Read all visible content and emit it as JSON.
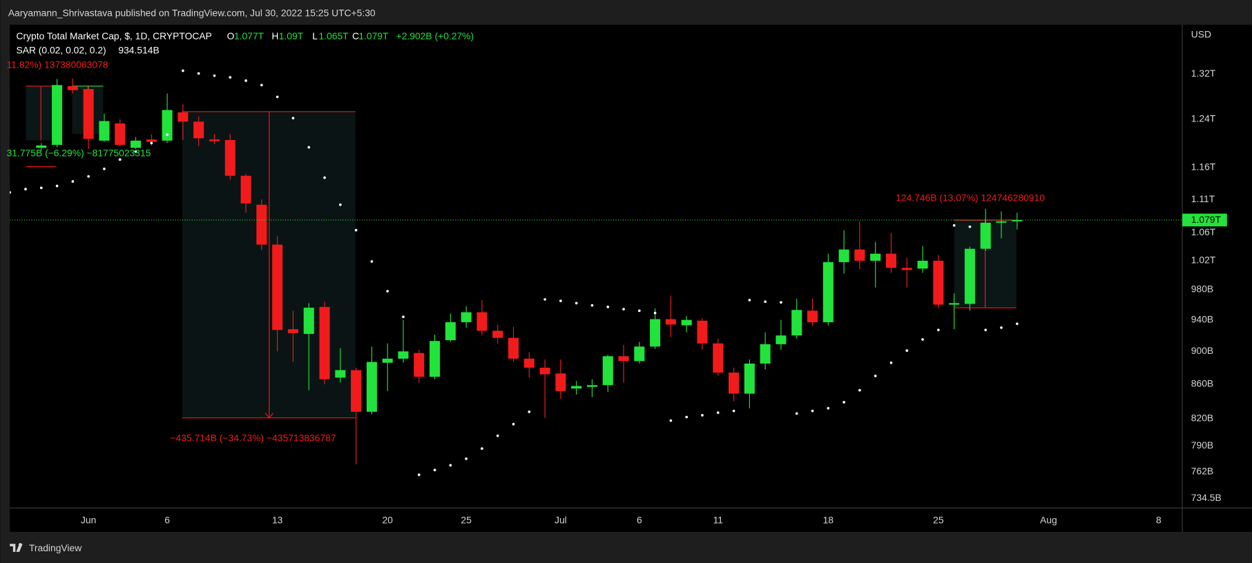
{
  "header": {
    "byline": "Aaryamann_Shrivastava published on TradingView.com, Jul 30, 2022 15:25 UTC+5:30",
    "footer": "TradingView"
  },
  "chart_data": {
    "type": "candlestick",
    "legend": {
      "symbol": "Crypto Total Market Cap, $, 1D, CRYPTOCAP",
      "o_key": "O",
      "o": "1.077T",
      "h_key": "H",
      "h": "1.09T",
      "l_key": "L",
      "l": "1.065T",
      "c_key": "C",
      "c": "1.079T",
      "change": "+2.902B (+0.27%)",
      "indicator_value": "934.514B"
    },
    "currency": "USD",
    "last_price_label": "1.079T",
    "up_color": "#22e33b",
    "down_color": "#f21b1b",
    "x": [
      "2022-05-29",
      "2022-05-30",
      "2022-05-31",
      "2022-06-01",
      "2022-06-02",
      "2022-06-03",
      "2022-06-04",
      "2022-06-05",
      "2022-06-06",
      "2022-06-07",
      "2022-06-08",
      "2022-06-09",
      "2022-06-10",
      "2022-06-11",
      "2022-06-12",
      "2022-06-13",
      "2022-06-14",
      "2022-06-15",
      "2022-06-16",
      "2022-06-17",
      "2022-06-18",
      "2022-06-19",
      "2022-06-20",
      "2022-06-21",
      "2022-06-22",
      "2022-06-23",
      "2022-06-24",
      "2022-06-25",
      "2022-06-26",
      "2022-06-27",
      "2022-06-28",
      "2022-06-29",
      "2022-06-30",
      "2022-07-01",
      "2022-07-02",
      "2022-07-03",
      "2022-07-04",
      "2022-07-05",
      "2022-07-06",
      "2022-07-07",
      "2022-07-08",
      "2022-07-09",
      "2022-07-10",
      "2022-07-11",
      "2022-07-12",
      "2022-07-13",
      "2022-07-14",
      "2022-07-15",
      "2022-07-16",
      "2022-07-17",
      "2022-07-18",
      "2022-07-19",
      "2022-07-20",
      "2022-07-21",
      "2022-07-22",
      "2022-07-23",
      "2022-07-24",
      "2022-07-25",
      "2022-07-26",
      "2022-07-27",
      "2022-07-28",
      "2022-07-29",
      "2022-07-30"
    ],
    "open": [
      1192,
      1197,
      1298,
      1293,
      1204,
      1233,
      1192,
      1206,
      1204,
      1252,
      1236,
      1206,
      1205,
      1147,
      1102,
      1043,
      928,
      922,
      957,
      868,
      877,
      828,
      886,
      891,
      898,
      869,
      914,
      937,
      950,
      926,
      917,
      891,
      880,
      873,
      855,
      857,
      859,
      894,
      888,
      906,
      941,
      933,
      939,
      910,
      874,
      849,
      885,
      909,
      920,
      952,
      937,
      1018,
      1036,
      1020,
      1030,
      1010,
      1009,
      1020,
      960,
      961,
      1037,
      1075,
      1077
    ],
    "high": [
      1200,
      1311,
      1312,
      1300,
      1250,
      1240,
      1210,
      1215,
      1285,
      1266,
      1245,
      1215,
      1215,
      1150,
      1110,
      1055,
      952,
      962,
      964,
      904,
      880,
      906,
      910,
      940,
      902,
      921,
      948,
      958,
      966,
      934,
      931,
      899,
      890,
      890,
      864,
      866,
      896,
      908,
      912,
      955,
      972,
      945,
      942,
      916,
      880,
      890,
      924,
      940,
      968,
      968,
      1030,
      1064,
      1077,
      1047,
      1060,
      1024,
      1041,
      1028,
      975,
      1040,
      1096,
      1092,
      1090
    ],
    "low": [
      1188,
      1193,
      1285,
      1190,
      1202,
      1195,
      1190,
      1196,
      1200,
      1205,
      1195,
      1198,
      1140,
      1090,
      1035,
      900,
      887,
      853,
      860,
      862,
      770,
      825,
      852,
      886,
      862,
      866,
      912,
      930,
      920,
      910,
      887,
      868,
      821,
      843,
      848,
      845,
      851,
      862,
      885,
      903,
      918,
      924,
      902,
      870,
      840,
      832,
      878,
      902,
      916,
      932,
      933,
      1002,
      1008,
      983,
      1003,
      983,
      1003,
      955,
      928,
      952,
      1034,
      1052,
      1065
    ],
    "close": [
      1196,
      1300,
      1291,
      1207,
      1237,
      1197,
      1204,
      1202,
      1256,
      1236,
      1208,
      1203,
      1147,
      1104,
      1043,
      927,
      923,
      956,
      866,
      877,
      828,
      887,
      891,
      900,
      869,
      913,
      937,
      950,
      926,
      917,
      891,
      880,
      872,
      852,
      858,
      859,
      894,
      888,
      906,
      941,
      934,
      940,
      910,
      874,
      849,
      885,
      909,
      920,
      953,
      937,
      1018,
      1036,
      1020,
      1030,
      1010,
      1007,
      1020,
      960,
      962,
      1037,
      1075,
      1077,
      1079
    ],
    "sar": {
      "name": "SAR (0.02, 0.02, 0.2)",
      "color": "#ffffff",
      "x": [
        "2022-05-27",
        "2022-05-28",
        "2022-05-29",
        "2022-05-30",
        "2022-05-31",
        "2022-06-01",
        "2022-06-02",
        "2022-06-03",
        "2022-06-04",
        "2022-06-05",
        "2022-06-06",
        "2022-06-07",
        "2022-06-08",
        "2022-06-09",
        "2022-06-10",
        "2022-06-11",
        "2022-06-12",
        "2022-06-13",
        "2022-06-14",
        "2022-06-15",
        "2022-06-16",
        "2022-06-17",
        "2022-06-18",
        "2022-06-19",
        "2022-06-20",
        "2022-06-21",
        "2022-06-22",
        "2022-06-23",
        "2022-06-24",
        "2022-06-25",
        "2022-06-26",
        "2022-06-27",
        "2022-06-28",
        "2022-06-29",
        "2022-06-30",
        "2022-07-01",
        "2022-07-02",
        "2022-07-03",
        "2022-07-04",
        "2022-07-05",
        "2022-07-06",
        "2022-07-07",
        "2022-07-08",
        "2022-07-09",
        "2022-07-10",
        "2022-07-11",
        "2022-07-12",
        "2022-07-13",
        "2022-07-14",
        "2022-07-15",
        "2022-07-16",
        "2022-07-17",
        "2022-07-18",
        "2022-07-19",
        "2022-07-20",
        "2022-07-21",
        "2022-07-22",
        "2022-07-23",
        "2022-07-24",
        "2022-07-25",
        "2022-07-26",
        "2022-07-27",
        "2022-07-28",
        "2022-07-29",
        "2022-07-30"
      ],
      "values": [
        1121,
        1126,
        1128,
        1131,
        1138,
        1146,
        1158,
        1173,
        1186,
        1200,
        1214,
        1326,
        1321,
        1317,
        1314,
        1308,
        1300,
        1279,
        1242,
        1193,
        1144,
        1102,
        1064,
        1019,
        978,
        944,
        759,
        764,
        769,
        776,
        787,
        801,
        814,
        828,
        967,
        965,
        962,
        959,
        957,
        954,
        952,
        949,
        818,
        822,
        824,
        827,
        829,
        966,
        964,
        963,
        826,
        829,
        832,
        839,
        853,
        870,
        886,
        901,
        915,
        927,
        1071,
        1069,
        927,
        930,
        935
      ]
    },
    "annotations": [
      "11.82%) 137380063078",
      "31.775B (−6.29%) −81775023315",
      "−435.714B (−34.73%) −435713836787",
      "124.746B (13.07%) 124746280910"
    ],
    "log_scale": true,
    "grid": false,
    "xlim": [
      "2022-05-27",
      "2022-08-09T12:00:00Z"
    ],
    "xticks": [
      {
        "value": "2022-06-01",
        "label": "Jun"
      },
      {
        "value": "2022-06-06",
        "label": "6"
      },
      {
        "value": "2022-06-13",
        "label": "13"
      },
      {
        "value": "2022-06-20",
        "label": "20"
      },
      {
        "value": "2022-06-25",
        "label": "25"
      },
      {
        "value": "2022-07-01",
        "label": "Jul"
      },
      {
        "value": "2022-07-06",
        "label": "6"
      },
      {
        "value": "2022-07-11",
        "label": "11"
      },
      {
        "value": "2022-07-18",
        "label": "18"
      },
      {
        "value": "2022-07-25",
        "label": "25"
      },
      {
        "value": "2022-08-01",
        "label": "Aug"
      },
      {
        "value": "2022-08-08",
        "label": "8"
      }
    ],
    "ylim": [
      725,
      1413
    ],
    "yticks": [
      {
        "value": 734.5,
        "label": "734.5B"
      },
      {
        "value": 762,
        "label": "762B"
      },
      {
        "value": 790,
        "label": "790B"
      },
      {
        "value": 820,
        "label": "820B"
      },
      {
        "value": 860,
        "label": "860B"
      },
      {
        "value": 900,
        "label": "900B"
      },
      {
        "value": 940,
        "label": "940B"
      },
      {
        "value": 980,
        "label": "980B"
      },
      {
        "value": 1020,
        "label": "1.02T"
      },
      {
        "value": 1060,
        "label": "1.06T"
      },
      {
        "value": 1110,
        "label": "1.11T"
      },
      {
        "value": 1160,
        "label": "1.16T"
      },
      {
        "value": 1240,
        "label": "1.24T"
      },
      {
        "value": 1320,
        "label": "1.32T"
      }
    ]
  }
}
